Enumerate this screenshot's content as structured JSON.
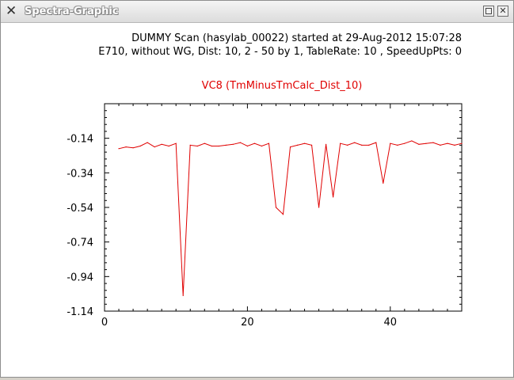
{
  "window": {
    "title": "Spectra-Graphic",
    "app_icon": "x-icon",
    "maximize_icon": "maximize-icon",
    "close_icon": "close-icon",
    "close_glyph": "✕"
  },
  "header": {
    "line1": "DUMMY  Scan (hasylab_00022) started at 29-Aug-2012 15:07:28",
    "line2": "E710, without WG, Dist: 10, 2 - 50 by 1, TableRate: 10 , SpeedUpPts: 0"
  },
  "colors": {
    "series": "#e00000",
    "axis": "#000000"
  },
  "chart_data": {
    "type": "line",
    "title": "VC8 (TmMinusTmCalc_Dist_10)",
    "xlabel": "",
    "ylabel": "",
    "xlim": [
      0,
      50
    ],
    "ylim": [
      -1.14,
      0.06
    ],
    "x_ticks": [
      "0",
      "20",
      "40"
    ],
    "x_tick_values": [
      0,
      20,
      40
    ],
    "y_ticks": [
      "-0.14",
      "-0.34",
      "-0.54",
      "-0.74",
      "-0.94",
      "-1.14"
    ],
    "y_tick_values": [
      -0.14,
      -0.34,
      -0.54,
      -0.74,
      -0.94,
      -1.14
    ],
    "grid": false,
    "series": [
      {
        "x": [
          2,
          3,
          4,
          5,
          6,
          7,
          8,
          9,
          10,
          11,
          12,
          13,
          14,
          15,
          16,
          17,
          18,
          19,
          20,
          21,
          22,
          23,
          24,
          25,
          26,
          27,
          28,
          29,
          30,
          31,
          32,
          33,
          34,
          35,
          36,
          37,
          38,
          39,
          40,
          41,
          42,
          43,
          44,
          45,
          46,
          47,
          48,
          49,
          50
        ],
        "values": [
          -0.2,
          -0.19,
          -0.195,
          -0.185,
          -0.165,
          -0.19,
          -0.175,
          -0.185,
          -0.17,
          -1.05,
          -0.18,
          -0.185,
          -0.17,
          -0.185,
          -0.185,
          -0.18,
          -0.175,
          -0.165,
          -0.185,
          -0.17,
          -0.185,
          -0.17,
          -0.54,
          -0.58,
          -0.19,
          -0.18,
          -0.17,
          -0.18,
          -0.54,
          -0.175,
          -0.48,
          -0.17,
          -0.18,
          -0.165,
          -0.18,
          -0.18,
          -0.165,
          -0.4,
          -0.17,
          -0.18,
          -0.17,
          -0.155,
          -0.175,
          -0.17,
          -0.165,
          -0.18,
          -0.17,
          -0.18,
          -0.17
        ]
      }
    ]
  }
}
